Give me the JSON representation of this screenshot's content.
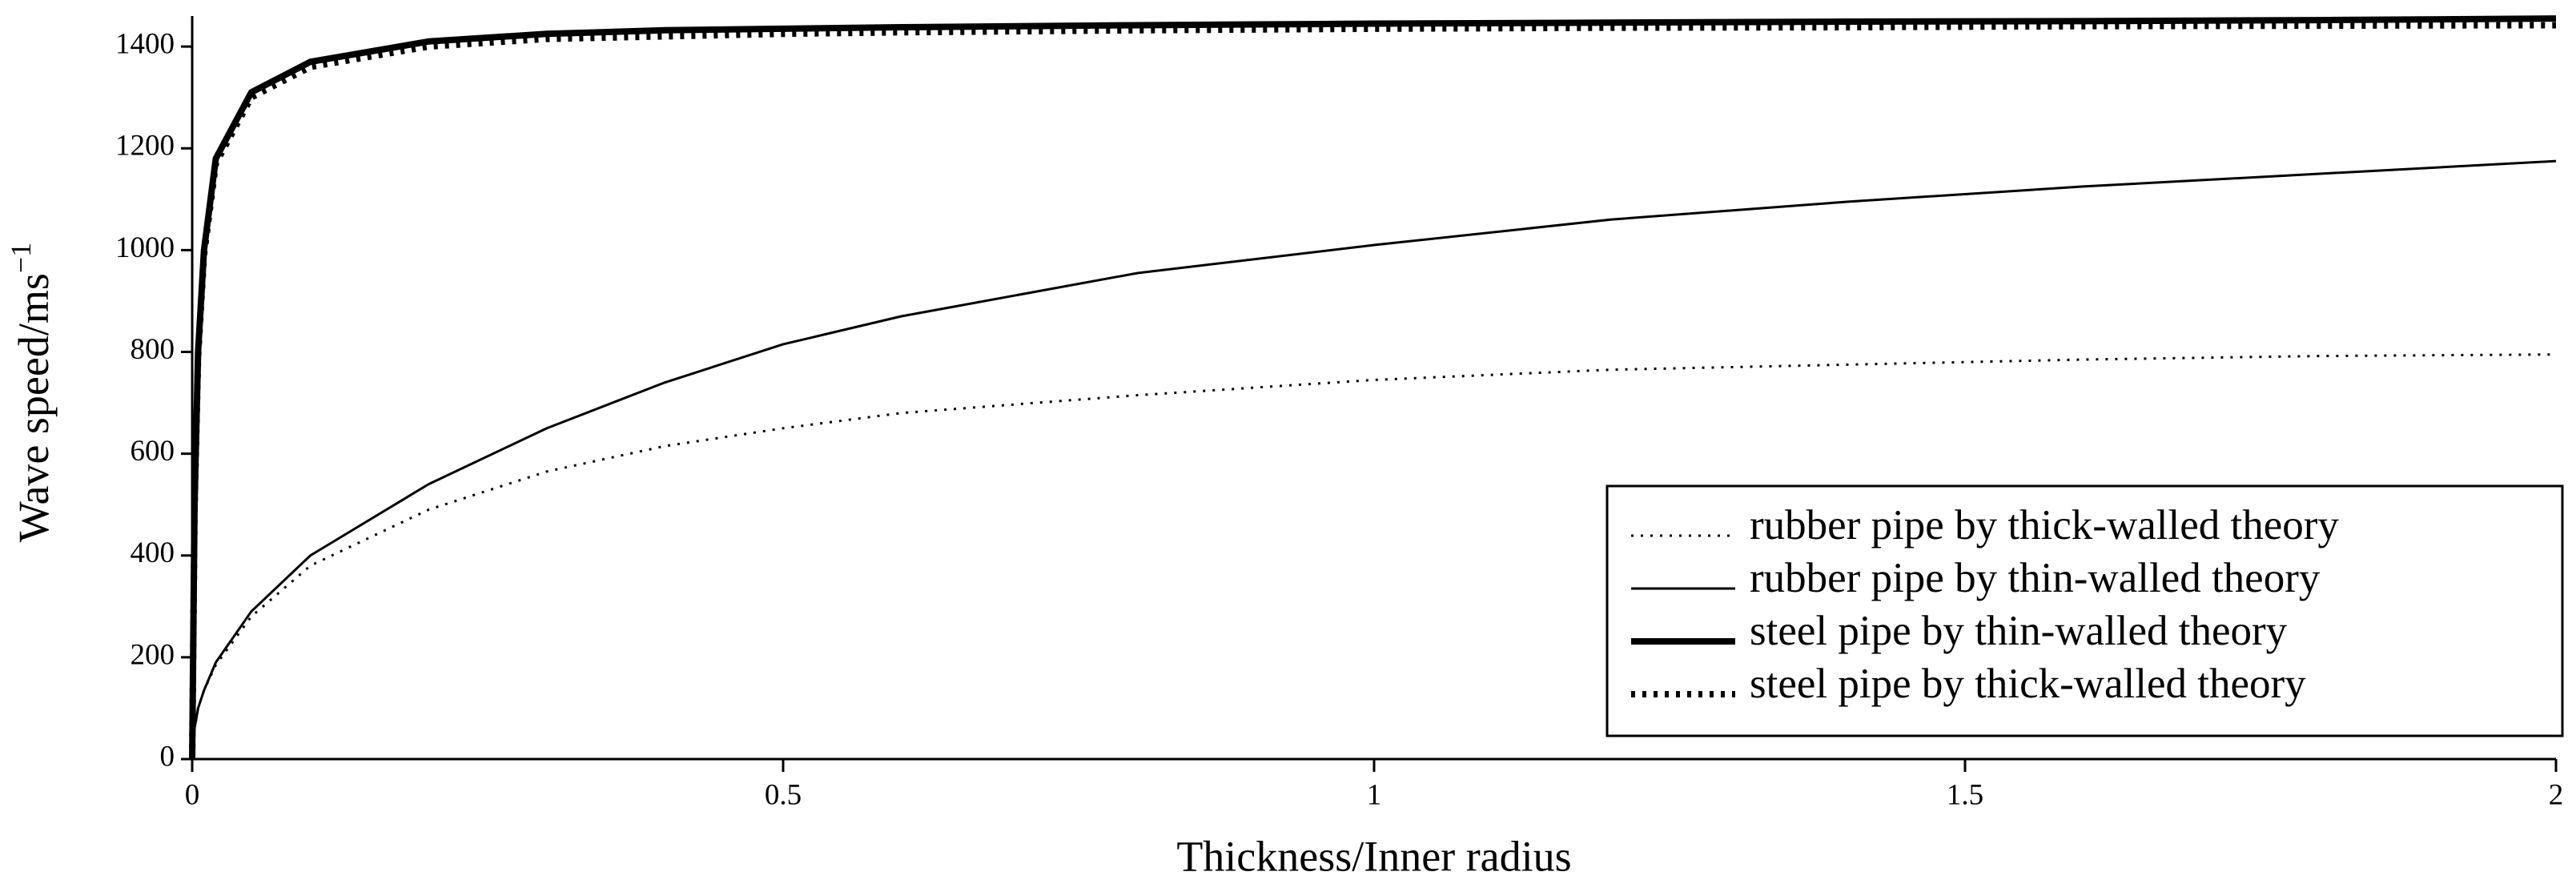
{
  "chart_data": {
    "type": "line",
    "xlabel": "Thickness/Inner radius",
    "ylabel": "Wave speed/ms",
    "ylabel_superscript": "−1",
    "x": [
      0,
      0.002,
      0.005,
      0.01,
      0.02,
      0.05,
      0.1,
      0.2,
      0.3,
      0.4,
      0.5,
      0.6,
      0.8,
      1.0,
      1.2,
      1.4,
      1.6,
      1.8,
      2.0
    ],
    "series": [
      {
        "name": "rubber pipe by thick-walled theory",
        "color": "#000000",
        "linestyle": "dotted",
        "linewidth": "thin",
        "values": [
          0,
          60,
          100,
          135,
          185,
          280,
          380,
          490,
          565,
          615,
          650,
          680,
          715,
          745,
          765,
          775,
          785,
          792,
          795
        ]
      },
      {
        "name": "rubber pipe by thin-walled theory",
        "color": "#000000",
        "linestyle": "solid",
        "linewidth": "thin",
        "values": [
          0,
          60,
          100,
          135,
          190,
          290,
          400,
          540,
          650,
          740,
          815,
          870,
          955,
          1010,
          1060,
          1095,
          1125,
          1150,
          1175
        ]
      },
      {
        "name": "steel pipe by thin-walled theory",
        "color": "#000000",
        "linestyle": "solid",
        "linewidth": "thick",
        "values": [
          0,
          500,
          800,
          1000,
          1180,
          1310,
          1370,
          1410,
          1425,
          1432,
          1435,
          1438,
          1442,
          1445,
          1447,
          1449,
          1450,
          1452,
          1455
        ]
      },
      {
        "name": "steel pipe by thick-walled theory",
        "color": "#000000",
        "linestyle": "dotted",
        "linewidth": "thick",
        "values": [
          0,
          490,
          790,
          990,
          1170,
          1300,
          1360,
          1400,
          1415,
          1420,
          1425,
          1428,
          1432,
          1435,
          1437,
          1438,
          1440,
          1441,
          1442
        ]
      }
    ],
    "xlim": [
      0,
      2
    ],
    "xticks": [
      0,
      0.5,
      1,
      1.5,
      2
    ],
    "ylim": [
      0,
      1460
    ],
    "yticks": [
      0,
      200,
      400,
      600,
      800,
      1000,
      1200,
      1400
    ],
    "legend": "lower-right"
  }
}
